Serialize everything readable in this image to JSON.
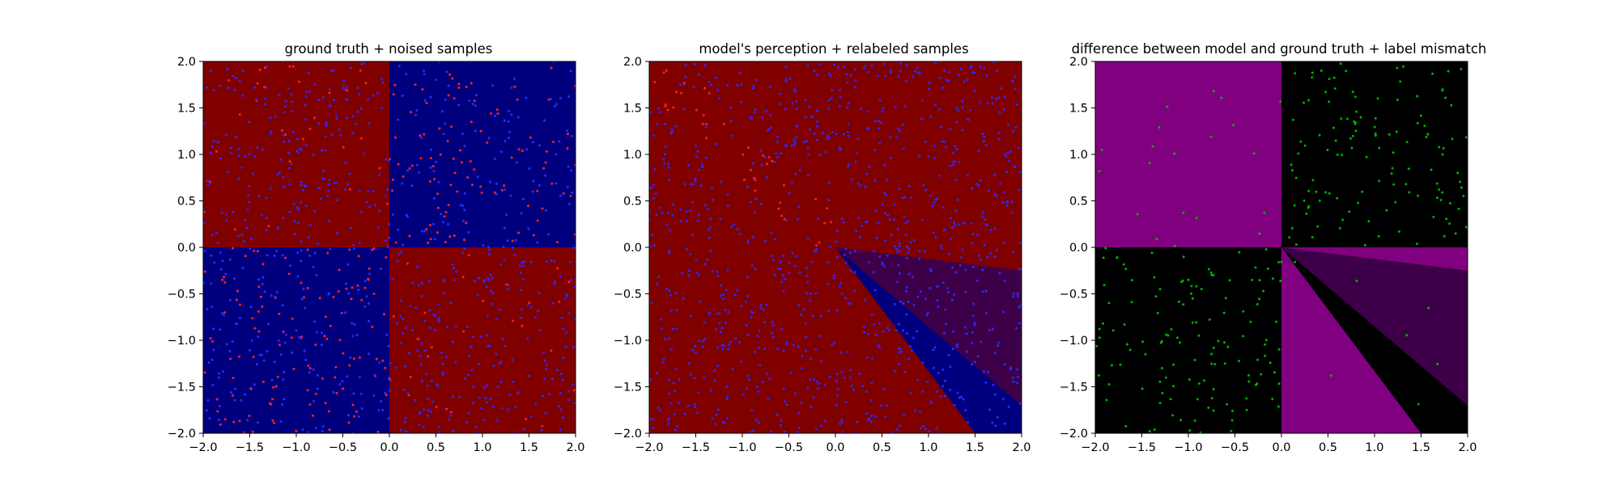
{
  "colors": {
    "red_region": "#800000",
    "blue_region": "#00007f",
    "purple_region": "#800080",
    "black_region": "#000000",
    "dark_wedge": "#3d0048",
    "red_point": "#ff2020",
    "blue_point": "#2a2aff",
    "green_point": "#00b000"
  },
  "chart_data": [
    {
      "type": "heatmap",
      "title": "ground truth + noised samples",
      "xlim": [
        -2.0,
        2.0
      ],
      "ylim": [
        -2.0,
        2.0
      ],
      "xticks": [
        "−2.0",
        "−1.5",
        "−1.0",
        "−0.5",
        "0.0",
        "0.5",
        "1.0",
        "1.5",
        "2.0"
      ],
      "yticks": [
        "−2.0",
        "−1.5",
        "−1.0",
        "−0.5",
        "0.0",
        "0.5",
        "1.0",
        "1.5",
        "2.0"
      ],
      "regions": [
        {
          "name": "top-left quadrant",
          "color": "red",
          "polygon": [
            [
              -2,
              0
            ],
            [
              0,
              0
            ],
            [
              0,
              2
            ],
            [
              -2,
              2
            ]
          ]
        },
        {
          "name": "top-right quadrant",
          "color": "blue",
          "polygon": [
            [
              0,
              0
            ],
            [
              2,
              0
            ],
            [
              2,
              2
            ],
            [
              0,
              2
            ]
          ]
        },
        {
          "name": "bottom-left quadrant",
          "color": "blue",
          "polygon": [
            [
              -2,
              -2
            ],
            [
              0,
              -2
            ],
            [
              0,
              0
            ],
            [
              -2,
              0
            ]
          ]
        },
        {
          "name": "bottom-right quadrant",
          "color": "red",
          "polygon": [
            [
              0,
              -2
            ],
            [
              2,
              -2
            ],
            [
              2,
              0
            ],
            [
              0,
              0
            ]
          ]
        }
      ],
      "grid": false
    },
    {
      "type": "heatmap",
      "title": "model's perception + relabeled samples",
      "xlim": [
        -2.0,
        2.0
      ],
      "ylim": [
        -2.0,
        2.0
      ],
      "xticks": [
        "−2.0",
        "−1.5",
        "−1.0",
        "−0.5",
        "0.0",
        "0.5",
        "1.0",
        "1.5",
        "2.0"
      ],
      "yticks": [
        "−2.0",
        "−1.5",
        "−1.0",
        "−0.5",
        "0.0",
        "0.5",
        "1.0",
        "1.5",
        "2.0"
      ],
      "regions": [
        {
          "name": "background",
          "color": "red",
          "polygon": [
            [
              -2,
              -2
            ],
            [
              2,
              -2
            ],
            [
              2,
              2
            ],
            [
              -2,
              2
            ]
          ]
        },
        {
          "name": "blue wedge",
          "color": "blue",
          "polygon": [
            [
              0,
              0
            ],
            [
              1.5,
              -2
            ],
            [
              2,
              -2
            ],
            [
              2,
              -1.7
            ]
          ]
        },
        {
          "name": "dark wedge",
          "color": "dark",
          "polygon": [
            [
              0,
              0
            ],
            [
              2,
              -1.7
            ],
            [
              2,
              -0.25
            ]
          ]
        }
      ],
      "grid": false
    },
    {
      "type": "heatmap",
      "title": "difference between model and ground truth + label mismatch",
      "xlim": [
        -2.0,
        2.0
      ],
      "ylim": [
        -2.0,
        2.0
      ],
      "xticks": [
        "−2.0",
        "−1.5",
        "−1.0",
        "−0.5",
        "0.0",
        "0.5",
        "1.0",
        "1.5",
        "2.0"
      ],
      "yticks": [
        "−2.0",
        "−1.5",
        "−1.0",
        "−0.5",
        "0.0",
        "0.5",
        "1.0",
        "1.5",
        "2.0"
      ],
      "regions": [
        {
          "name": "top-left quadrant",
          "color": "purple",
          "polygon": [
            [
              -2,
              0
            ],
            [
              0,
              0
            ],
            [
              0,
              2
            ],
            [
              -2,
              2
            ]
          ]
        },
        {
          "name": "top-right quadrant",
          "color": "black",
          "polygon": [
            [
              0,
              0
            ],
            [
              2,
              0
            ],
            [
              2,
              2
            ],
            [
              0,
              2
            ]
          ]
        },
        {
          "name": "bottom-left quadrant",
          "color": "black",
          "polygon": [
            [
              -2,
              -2
            ],
            [
              0,
              -2
            ],
            [
              0,
              0
            ],
            [
              -2,
              0
            ]
          ]
        },
        {
          "name": "bottom-right purple",
          "color": "purple",
          "polygon": [
            [
              0,
              -2
            ],
            [
              2,
              -2
            ],
            [
              2,
              0
            ],
            [
              0,
              0
            ]
          ]
        },
        {
          "name": "black wedge",
          "color": "black",
          "polygon": [
            [
              0,
              0
            ],
            [
              1.5,
              -2
            ],
            [
              2,
              -2
            ],
            [
              2,
              -1.7
            ]
          ]
        },
        {
          "name": "dark wedge",
          "color": "dark",
          "polygon": [
            [
              0,
              0
            ],
            [
              2,
              -1.7
            ],
            [
              2,
              -0.25
            ]
          ]
        }
      ],
      "grid": false
    }
  ]
}
